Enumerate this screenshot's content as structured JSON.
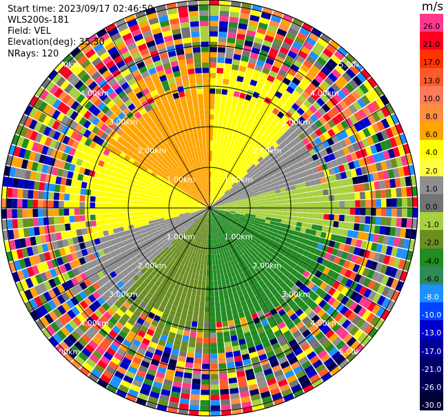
{
  "header": {
    "start_time": "Start time: 2023/09/17 02:46:50",
    "instrument": "WLS200s-181",
    "field": "Field: VEL",
    "elevation": "Elevation(deg): 35.30",
    "nrays": "NRays: 120"
  },
  "range_rings": [
    {
      "label": "1.00km"
    },
    {
      "label": "2.00km"
    },
    {
      "label": "3.00km"
    },
    {
      "label": "4.00km"
    },
    {
      "label": "5.00km"
    }
  ],
  "colorbar": {
    "unit": "m/s",
    "levels": [
      {
        "label": "26.0",
        "color": "#ff3a8c"
      },
      {
        "label": "21.0",
        "color": "#ff0022"
      },
      {
        "label": "17.0",
        "color": "#ff3300"
      },
      {
        "label": "13.0",
        "color": "#ff5a2c"
      },
      {
        "label": "10.0",
        "color": "#ff7a5c"
      },
      {
        "label": "8.0",
        "color": "#ff8f40"
      },
      {
        "label": "6.0",
        "color": "#ffa400"
      },
      {
        "label": "4.0",
        "color": "#ffff00"
      },
      {
        "label": "2.0",
        "color": "#ffff40"
      },
      {
        "label": "1.0",
        "color": "#8f8f8f"
      },
      {
        "label": "0.0",
        "color": "#737373"
      },
      {
        "label": "-1.0",
        "color": "#a8d040"
      },
      {
        "label": "-2.0",
        "color": "#6b8e23"
      },
      {
        "label": "-4.0",
        "color": "#228b22"
      },
      {
        "label": "-6.0",
        "color": "#2e8b57"
      },
      {
        "label": "-8.0",
        "color": "#1e90ff"
      },
      {
        "label": "-10.0",
        "color": "#0044ff"
      },
      {
        "label": "-13.0",
        "color": "#0000cd"
      },
      {
        "label": "-17.0",
        "color": "#000099"
      },
      {
        "label": "-21.0",
        "color": "#00006b"
      },
      {
        "label": "-26.0",
        "color": "#000050"
      },
      {
        "label": "-30.0",
        "color": "#000033"
      }
    ]
  }
}
